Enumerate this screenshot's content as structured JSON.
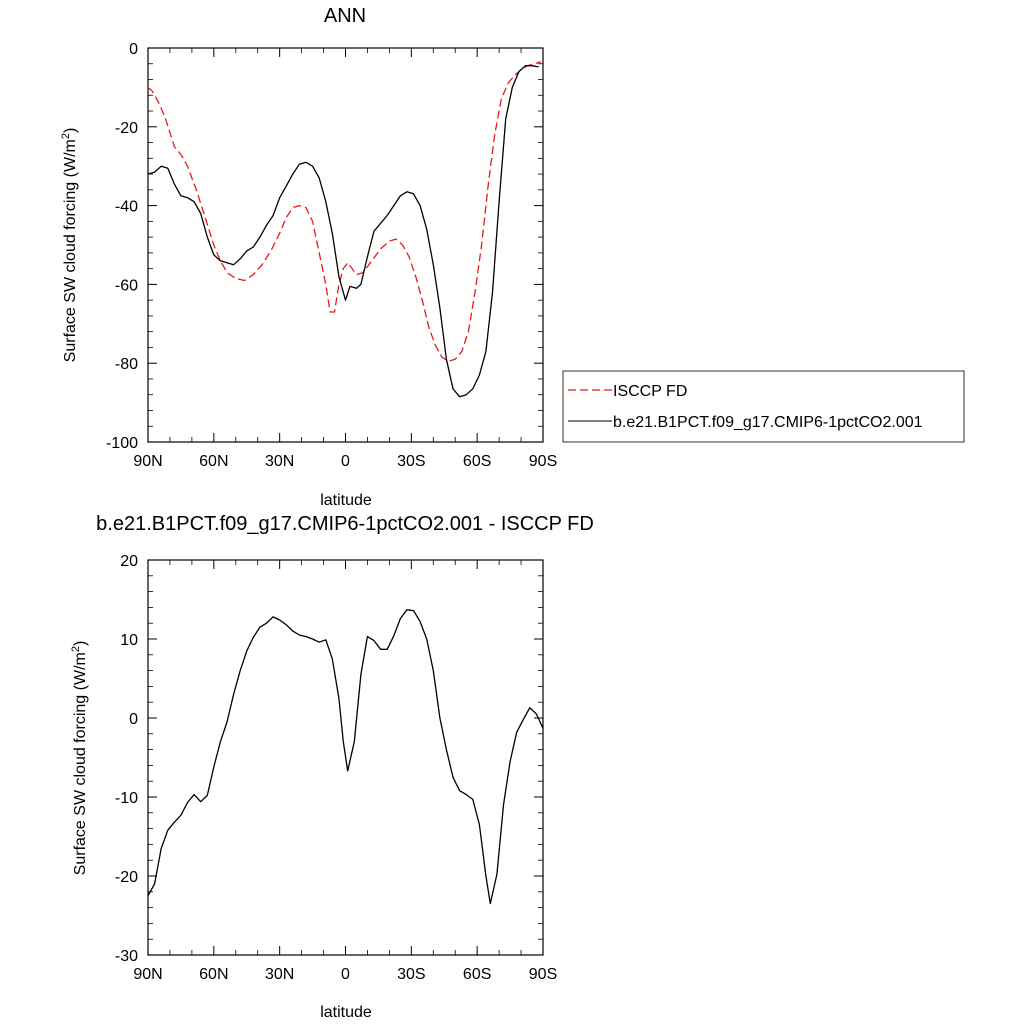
{
  "chart_data": [
    {
      "type": "line",
      "title": "ANN",
      "xlabel": "latitude",
      "ylabel": "Surface SW cloud forcing (W/m",
      "ylabel_sup": "2",
      "ylabel_suffix": ")",
      "xlim": [
        90,
        -90
      ],
      "ylim": [
        -100,
        0
      ],
      "x_ticks": [
        90,
        60,
        30,
        0,
        -30,
        -60,
        -90
      ],
      "x_tick_labels": [
        "90N",
        "60N",
        "30N",
        "0",
        "30S",
        "60S",
        "90S"
      ],
      "y_ticks": [
        0,
        -20,
        -40,
        -60,
        -80,
        -100
      ],
      "y_tick_labels": [
        "0",
        "-20",
        "-40",
        "-60",
        "-80",
        "-100"
      ],
      "legend_position": "right",
      "series": [
        {
          "name": "ISCCP FD",
          "color": "#e8191b",
          "dash": "dashed",
          "points": [
            [
              90,
              -10
            ],
            [
              88,
              -11
            ],
            [
              85,
              -14
            ],
            [
              82,
              -18
            ],
            [
              78,
              -25
            ],
            [
              75,
              -27
            ],
            [
              72,
              -30
            ],
            [
              68,
              -36
            ],
            [
              64,
              -43
            ],
            [
              60,
              -50
            ],
            [
              57,
              -54
            ],
            [
              54,
              -57
            ],
            [
              50,
              -58.5
            ],
            [
              46,
              -59
            ],
            [
              42,
              -57.5
            ],
            [
              38,
              -55
            ],
            [
              34,
              -51.5
            ],
            [
              30,
              -47
            ],
            [
              27,
              -43
            ],
            [
              24,
              -40.5
            ],
            [
              21,
              -40
            ],
            [
              18,
              -40.5
            ],
            [
              15,
              -44
            ],
            [
              12,
              -52
            ],
            [
              9,
              -60
            ],
            [
              7,
              -67
            ],
            [
              5,
              -67
            ],
            [
              3,
              -60
            ],
            [
              1,
              -56
            ],
            [
              -1,
              -54.5
            ],
            [
              -3,
              -56
            ],
            [
              -5,
              -57.5
            ],
            [
              -8,
              -57
            ],
            [
              -12,
              -54
            ],
            [
              -16,
              -51
            ],
            [
              -20,
              -49
            ],
            [
              -23,
              -48.5
            ],
            [
              -26,
              -50
            ],
            [
              -29,
              -53
            ],
            [
              -32,
              -58
            ],
            [
              -35,
              -64
            ],
            [
              -38,
              -71
            ],
            [
              -41,
              -75.5
            ],
            [
              -44,
              -78.5
            ],
            [
              -47,
              -79.5
            ],
            [
              -50,
              -79
            ],
            [
              -53,
              -77
            ],
            [
              -56,
              -72
            ],
            [
              -59,
              -62
            ],
            [
              -62,
              -50
            ],
            [
              -65,
              -35
            ],
            [
              -68,
              -22
            ],
            [
              -71,
              -13
            ],
            [
              -74,
              -9
            ],
            [
              -77,
              -7
            ],
            [
              -80,
              -5.5
            ],
            [
              -83,
              -4.5
            ],
            [
              -86,
              -4
            ],
            [
              -89,
              -3.5
            ]
          ]
        },
        {
          "name": "b.e21.B1PCT.f09_g17.CMIP6-1pctCO2.001",
          "color": "#000000",
          "dash": "solid",
          "points": [
            [
              90,
              -32
            ],
            [
              87,
              -31.5
            ],
            [
              84,
              -30
            ],
            [
              81,
              -30.5
            ],
            [
              78,
              -34.5
            ],
            [
              75,
              -37.5
            ],
            [
              72,
              -38
            ],
            [
              69,
              -39
            ],
            [
              66,
              -42
            ],
            [
              63,
              -48
            ],
            [
              60,
              -52.5
            ],
            [
              57,
              -54
            ],
            [
              54,
              -54.5
            ],
            [
              51,
              -55
            ],
            [
              48,
              -53.5
            ],
            [
              45,
              -51.5
            ],
            [
              42,
              -50.5
            ],
            [
              39,
              -48
            ],
            [
              36,
              -45
            ],
            [
              33,
              -42.5
            ],
            [
              30,
              -38
            ],
            [
              27,
              -35
            ],
            [
              24,
              -32
            ],
            [
              21,
              -29.5
            ],
            [
              18,
              -29
            ],
            [
              15,
              -30
            ],
            [
              12,
              -33
            ],
            [
              9,
              -39
            ],
            [
              6,
              -47
            ],
            [
              3,
              -58
            ],
            [
              0,
              -64
            ],
            [
              -2,
              -60.5
            ],
            [
              -5,
              -61
            ],
            [
              -7,
              -60
            ],
            [
              -10,
              -53
            ],
            [
              -13,
              -46.5
            ],
            [
              -16,
              -44.5
            ],
            [
              -19,
              -42.5
            ],
            [
              -22,
              -40
            ],
            [
              -25,
              -37.5
            ],
            [
              -28,
              -36.5
            ],
            [
              -31,
              -37
            ],
            [
              -34,
              -40
            ],
            [
              -37,
              -46
            ],
            [
              -40,
              -55
            ],
            [
              -43,
              -66
            ],
            [
              -46,
              -79
            ],
            [
              -49,
              -86.5
            ],
            [
              -52,
              -88.5
            ],
            [
              -55,
              -88
            ],
            [
              -58,
              -86.5
            ],
            [
              -61,
              -83
            ],
            [
              -64,
              -77
            ],
            [
              -67,
              -62
            ],
            [
              -70,
              -39
            ],
            [
              -73,
              -18
            ],
            [
              -76,
              -10
            ],
            [
              -79,
              -6
            ],
            [
              -82,
              -4.5
            ],
            [
              -85,
              -4.5
            ],
            [
              -88,
              -4.8
            ]
          ]
        }
      ]
    },
    {
      "type": "line",
      "title": "b.e21.B1PCT.f09_g17.CMIP6-1pctCO2.001 - ISCCP FD",
      "xlabel": "latitude",
      "ylabel": "Surface SW cloud forcing (W/m",
      "ylabel_sup": "2",
      "ylabel_suffix": ")",
      "xlim": [
        90,
        -90
      ],
      "ylim": [
        -30,
        20
      ],
      "x_ticks": [
        90,
        60,
        30,
        0,
        -30,
        -60,
        -90
      ],
      "x_tick_labels": [
        "90N",
        "60N",
        "30N",
        "0",
        "30S",
        "60S",
        "90S"
      ],
      "y_ticks": [
        20,
        10,
        0,
        -10,
        -20,
        -30
      ],
      "y_tick_labels": [
        "20",
        "10",
        "0",
        "-10",
        "-20",
        "-30"
      ],
      "series": [
        {
          "color": "#000000",
          "dash": "solid",
          "points": [
            [
              90,
              -22.5
            ],
            [
              87,
              -21
            ],
            [
              84,
              -16.5
            ],
            [
              81,
              -14.2
            ],
            [
              78,
              -13.2
            ],
            [
              75,
              -12.3
            ],
            [
              72,
              -10.7
            ],
            [
              69,
              -9.7
            ],
            [
              66,
              -10.6
            ],
            [
              63,
              -9.8
            ],
            [
              60,
              -6.2
            ],
            [
              57,
              -3
            ],
            [
              54,
              -0.5
            ],
            [
              51,
              3
            ],
            [
              48,
              6
            ],
            [
              45,
              8.5
            ],
            [
              42,
              10.2
            ],
            [
              39,
              11.5
            ],
            [
              36,
              12
            ],
            [
              33,
              12.8
            ],
            [
              30,
              12.4
            ],
            [
              27,
              11.8
            ],
            [
              24,
              11
            ],
            [
              21,
              10.5
            ],
            [
              18,
              10.3
            ],
            [
              15,
              10
            ],
            [
              12,
              9.6
            ],
            [
              9,
              9.9
            ],
            [
              6,
              7.5
            ],
            [
              3,
              2.5
            ],
            [
              1,
              -3
            ],
            [
              -1,
              -6.7
            ],
            [
              -4,
              -3
            ],
            [
              -7,
              5.5
            ],
            [
              -10,
              10.3
            ],
            [
              -13,
              9.8
            ],
            [
              -16,
              8.7
            ],
            [
              -19,
              8.7
            ],
            [
              -22,
              10.4
            ],
            [
              -25,
              12.6
            ],
            [
              -28,
              13.7
            ],
            [
              -31,
              13.6
            ],
            [
              -34,
              12.2
            ],
            [
              -37,
              10
            ],
            [
              -40,
              6
            ],
            [
              -43,
              0
            ],
            [
              -46,
              -4
            ],
            [
              -49,
              -7.5
            ],
            [
              -52,
              -9.2
            ],
            [
              -55,
              -9.7
            ],
            [
              -58,
              -10.3
            ],
            [
              -61,
              -13.5
            ],
            [
              -64,
              -20
            ],
            [
              -66,
              -23.5
            ],
            [
              -69,
              -19.8
            ],
            [
              -72,
              -11
            ],
            [
              -75,
              -5.5
            ],
            [
              -78,
              -1.8
            ],
            [
              -81,
              -0.2
            ],
            [
              -84,
              1.3
            ],
            [
              -87,
              0.5
            ],
            [
              -90,
              -1.3
            ]
          ]
        }
      ]
    }
  ]
}
